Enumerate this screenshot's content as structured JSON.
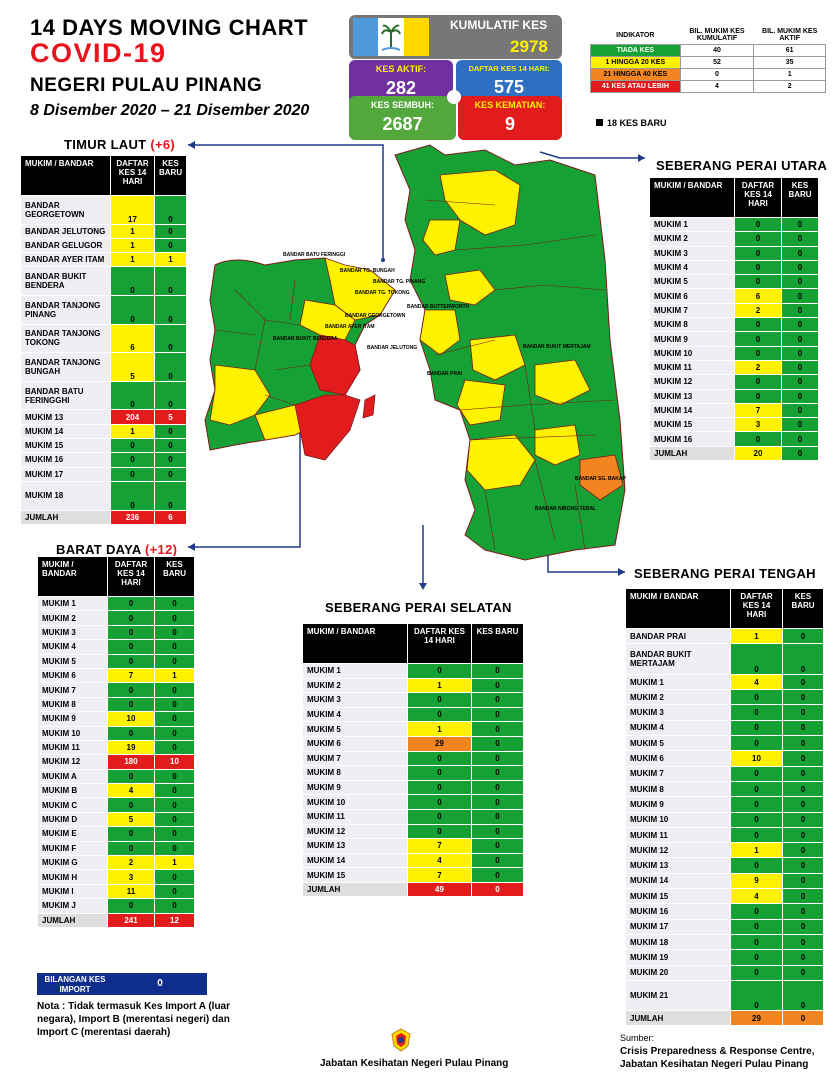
{
  "header": {
    "line1": "14  DAYS MOVING CHART",
    "line2": "COVID-19",
    "line3": "NEGERI PULAU PINANG",
    "line4": "8 Disember 2020 – 21 Disember 2020"
  },
  "summary": {
    "kumulatif_label": "KUMULATIF KES",
    "kumulatif_value": "2978",
    "aktif_label": "KES AKTIF:",
    "aktif_value": "282",
    "daftar_label": "DAFTAR KES 14 HARI:",
    "daftar_value": "575",
    "sembuh_label": "KES SEMBUH:",
    "sembuh_value": "2687",
    "kematian_label": "KES KEMATIAN:",
    "kematian_value": "9"
  },
  "indicator": {
    "headers": [
      "INDIKATOR",
      "BIL. MUKIM KES KUMULATIF",
      "BIL. MUKIM KES AKTIF"
    ],
    "rows": [
      {
        "label": "TIADA KES",
        "c1": "40",
        "c2": "61",
        "color": "#16a134",
        "text": "#fff"
      },
      {
        "label": "1 HINGGA 20 KES",
        "c1": "52",
        "c2": "35",
        "color": "#fff200",
        "text": "#000"
      },
      {
        "label": "21 HINGGA 40 KES",
        "c1": "0",
        "c2": "1",
        "color": "#f28421",
        "text": "#000"
      },
      {
        "label": "41 KES ATAU LEBIH",
        "c1": "4",
        "c2": "2",
        "color": "#e21c1c",
        "text": "#fff"
      }
    ],
    "legend": "18 KES BARU"
  },
  "timur_laut": {
    "title": "TIMUR LAUT",
    "delta": "(+6)",
    "headers": [
      "MUKIM / BANDAR",
      "DAFTAR KES 14 HARI",
      "KES BARU"
    ],
    "rows": [
      [
        "BANDAR GEORGETOWN",
        "17",
        "0",
        "y",
        "g",
        2
      ],
      [
        "BANDAR JELUTONG",
        "1",
        "0",
        "y",
        "g",
        1
      ],
      [
        "BANDAR GELUGOR",
        "1",
        "0",
        "y",
        "g",
        1
      ],
      [
        "BANDAR AYER ITAM",
        "1",
        "1",
        "y",
        "y",
        1
      ],
      [
        "BANDAR BUKIT BENDERA",
        "0",
        "0",
        "g",
        "g",
        2
      ],
      [
        "BANDAR TANJONG PINANG",
        "0",
        "0",
        "g",
        "g",
        2
      ],
      [
        "BANDAR TANJONG TOKONG",
        "6",
        "0",
        "y",
        "g",
        2
      ],
      [
        "BANDAR TANJONG BUNGAH",
        "5",
        "0",
        "y",
        "g",
        2
      ],
      [
        "BANDAR BATU FERINGGHI",
        "0",
        "0",
        "g",
        "g",
        2
      ],
      [
        "MUKIM 13",
        "204",
        "5",
        "r",
        "r",
        1
      ],
      [
        "MUKIM 14",
        "1",
        "0",
        "y",
        "g",
        1
      ],
      [
        "MUKIM 15",
        "0",
        "0",
        "g",
        "g",
        1
      ],
      [
        "MUKIM 16",
        "0",
        "0",
        "g",
        "g",
        1
      ],
      [
        "MUKIM 17",
        "0",
        "0",
        "g",
        "g",
        1
      ],
      [
        "MUKIM 18",
        "0",
        "0",
        "g",
        "g",
        2
      ]
    ],
    "total": [
      "JUMLAH",
      "236",
      "6"
    ]
  },
  "barat_daya": {
    "title": "BARAT DAYA",
    "delta": "(+12)",
    "headers": [
      "MUKIM / BANDAR",
      "DAFTAR KES 14 HARI",
      "KES BARU"
    ],
    "rows": [
      [
        "MUKIM 1",
        "0",
        "0",
        "g",
        "g"
      ],
      [
        "MUKIM 2",
        "0",
        "0",
        "g",
        "g"
      ],
      [
        "MUKIM 3",
        "0",
        "0",
        "g",
        "g"
      ],
      [
        "MUKIM 4",
        "0",
        "0",
        "g",
        "g"
      ],
      [
        "MUKIM 5",
        "0",
        "0",
        "g",
        "g"
      ],
      [
        "MUKIM 6",
        "7",
        "1",
        "y",
        "y"
      ],
      [
        "MUKIM 7",
        "0",
        "0",
        "g",
        "g"
      ],
      [
        "MUKIM 8",
        "0",
        "0",
        "g",
        "g"
      ],
      [
        "MUKIM 9",
        "10",
        "0",
        "y",
        "g"
      ],
      [
        "MUKIM 10",
        "0",
        "0",
        "g",
        "g"
      ],
      [
        "MUKIM 11",
        "19",
        "0",
        "y",
        "g"
      ],
      [
        "MUKIM 12",
        "180",
        "10",
        "r",
        "r"
      ],
      [
        "MUKIM A",
        "0",
        "0",
        "g",
        "g"
      ],
      [
        "MUKIM B",
        "4",
        "0",
        "y",
        "g"
      ],
      [
        "MUKIM C",
        "0",
        "0",
        "g",
        "g"
      ],
      [
        "MUKIM D",
        "5",
        "0",
        "y",
        "g"
      ],
      [
        "MUKIM E",
        "0",
        "0",
        "g",
        "g"
      ],
      [
        "MUKIM F",
        "0",
        "0",
        "g",
        "g"
      ],
      [
        "MUKIM G",
        "2",
        "1",
        "y",
        "y"
      ],
      [
        "MUKIM H",
        "3",
        "0",
        "y",
        "g"
      ],
      [
        "MUKIM I",
        "11",
        "0",
        "y",
        "g"
      ],
      [
        "MUKIM J",
        "0",
        "0",
        "g",
        "g"
      ]
    ],
    "total": [
      "JUMLAH",
      "241",
      "12"
    ]
  },
  "spu": {
    "title": "SEBERANG PERAI UTARA",
    "headers": [
      "MUKIM / BANDAR",
      "DAFTAR KES 14 HARI",
      "KES BARU"
    ],
    "rows": [
      [
        "MUKIM 1",
        "0",
        "0",
        "g",
        "g"
      ],
      [
        "MUKIM 2",
        "0",
        "0",
        "g",
        "g"
      ],
      [
        "MUKIM 3",
        "0",
        "0",
        "g",
        "g"
      ],
      [
        "MUKIM 4",
        "0",
        "0",
        "g",
        "g"
      ],
      [
        "MUKIM 5",
        "0",
        "0",
        "g",
        "g"
      ],
      [
        "MUKIM 6",
        "6",
        "0",
        "y",
        "g"
      ],
      [
        "MUKIM 7",
        "2",
        "0",
        "y",
        "g"
      ],
      [
        "MUKIM 8",
        "0",
        "0",
        "g",
        "g"
      ],
      [
        "MUKIM 9",
        "0",
        "0",
        "g",
        "g"
      ],
      [
        "MUKIM 10",
        "0",
        "0",
        "g",
        "g"
      ],
      [
        "MUKIM 11",
        "2",
        "0",
        "y",
        "g"
      ],
      [
        "MUKIM 12",
        "0",
        "0",
        "g",
        "g"
      ],
      [
        "MUKIM 13",
        "0",
        "0",
        "g",
        "g"
      ],
      [
        "MUKIM 14",
        "7",
        "0",
        "y",
        "g"
      ],
      [
        "MUKIM 15",
        "3",
        "0",
        "y",
        "g"
      ],
      [
        "MUKIM 16",
        "0",
        "0",
        "g",
        "g"
      ]
    ],
    "total": [
      "JUMLAH",
      "20",
      "0"
    ]
  },
  "sps": {
    "title": "SEBERANG PERAI SELATAN",
    "headers": [
      "MUKIM / BANDAR",
      "DAFTAR KES 14 HARI",
      "KES BARU"
    ],
    "rows": [
      [
        "MUKIM 1",
        "0",
        "0",
        "g",
        "g"
      ],
      [
        "MUKIM 2",
        "1",
        "0",
        "y",
        "g"
      ],
      [
        "MUKIM 3",
        "0",
        "0",
        "g",
        "g"
      ],
      [
        "MUKIM 4",
        "0",
        "0",
        "g",
        "g"
      ],
      [
        "MUKIM 5",
        "1",
        "0",
        "y",
        "g"
      ],
      [
        "MUKIM 6",
        "29",
        "0",
        "o",
        "g"
      ],
      [
        "MUKIM 7",
        "0",
        "0",
        "g",
        "g"
      ],
      [
        "MUKIM 8",
        "0",
        "0",
        "g",
        "g"
      ],
      [
        "MUKIM 9",
        "0",
        "0",
        "g",
        "g"
      ],
      [
        "MUKIM 10",
        "0",
        "0",
        "g",
        "g"
      ],
      [
        "MUKIM 11",
        "0",
        "0",
        "g",
        "g"
      ],
      [
        "MUKIM 12",
        "0",
        "0",
        "g",
        "g"
      ],
      [
        "MUKIM 13",
        "7",
        "0",
        "y",
        "g"
      ],
      [
        "MUKIM 14",
        "4",
        "0",
        "y",
        "g"
      ],
      [
        "MUKIM 15",
        "7",
        "0",
        "y",
        "g"
      ]
    ],
    "total": [
      "JUMLAH",
      "49",
      "0"
    ]
  },
  "spt": {
    "title": "SEBERANG PERAI TENGAH",
    "headers": [
      "MUKIM / BANDAR",
      "DAFTAR KES 14 HARI",
      "KES BARU"
    ],
    "rows": [
      [
        "BANDAR PRAI",
        "1",
        "0",
        "y",
        "g",
        1
      ],
      [
        "BANDAR BUKIT MERTAJAM",
        "0",
        "0",
        "g",
        "g",
        2
      ],
      [
        "MUKIM 1",
        "4",
        "0",
        "y",
        "g",
        1
      ],
      [
        "MUKIM 2",
        "0",
        "0",
        "g",
        "g",
        1
      ],
      [
        "MUKIM 3",
        "0",
        "0",
        "g",
        "g",
        1
      ],
      [
        "MUKIM 4",
        "0",
        "0",
        "g",
        "g",
        1
      ],
      [
        "MUKIM 5",
        "0",
        "0",
        "g",
        "g",
        1
      ],
      [
        "MUKIM 6",
        "10",
        "0",
        "y",
        "g",
        1
      ],
      [
        "MUKIM 7",
        "0",
        "0",
        "g",
        "g",
        1
      ],
      [
        "MUKIM 8",
        "0",
        "0",
        "g",
        "g",
        1
      ],
      [
        "MUKIM 9",
        "0",
        "0",
        "g",
        "g",
        1
      ],
      [
        "MUKIM 10",
        "0",
        "0",
        "g",
        "g",
        1
      ],
      [
        "MUKIM 11",
        "0",
        "0",
        "g",
        "g",
        1
      ],
      [
        "MUKIM 12",
        "1",
        "0",
        "y",
        "g",
        1
      ],
      [
        "MUKIM 13",
        "0",
        "0",
        "g",
        "g",
        1
      ],
      [
        "MUKIM 14",
        "9",
        "0",
        "y",
        "g",
        1
      ],
      [
        "MUKIM 15",
        "4",
        "0",
        "y",
        "g",
        1
      ],
      [
        "MUKIM 16",
        "0",
        "0",
        "g",
        "g",
        1
      ],
      [
        "MUKIM 17",
        "0",
        "0",
        "g",
        "g",
        1
      ],
      [
        "MUKIM 18",
        "0",
        "0",
        "g",
        "g",
        1
      ],
      [
        "MUKIM 19",
        "0",
        "0",
        "g",
        "g",
        1
      ],
      [
        "MUKIM 20",
        "0",
        "0",
        "g",
        "g",
        1
      ],
      [
        "MUKIM 21",
        "0",
        "0",
        "g",
        "g",
        2
      ]
    ],
    "total": [
      "JUMLAH",
      "29",
      "0"
    ]
  },
  "import_box": {
    "label": "BILANGAN KES IMPORT",
    "value": "0"
  },
  "note": "Nota : Tidak termasuk Kes Import A (luar negara), Import B (merentasi negeri) dan Import C (merentasi daerah)",
  "source": {
    "label": "Sumber:",
    "line1": "Crisis Preparedness & Response Centre,",
    "line2": "Jabatan Kesihatan Negeri Pulau Pinang"
  },
  "department": "Jabatan Kesihatan Negeri Pulau Pinang",
  "map_labels": {
    "batu_feringgi": "BANDAR BATU FERINGGI",
    "tg_bungah": "BANDAR TG. BUNGAH",
    "tg_pinang": "BANDAR TG. PINANG",
    "tg_tokong": "BANDAR TG. TOKONG",
    "georgetown": "BANDAR GEORGETOWN",
    "ayer_itam": "BANDAR AYER ITAM",
    "jelutong": "BANDAR JELUTONG",
    "bukit_bendera": "BANDAR BUKIT BENDERA",
    "butterworth": "BANDAR BUTTERWORTH",
    "prai": "BANDAR PRAI",
    "bukit_mertajam": "BANDAR BUKIT MERTAJAM",
    "sg_bakap": "BANDAR SG. BAKAP",
    "nibong_tebal": "BANDAR NIBONG TEBAL"
  }
}
